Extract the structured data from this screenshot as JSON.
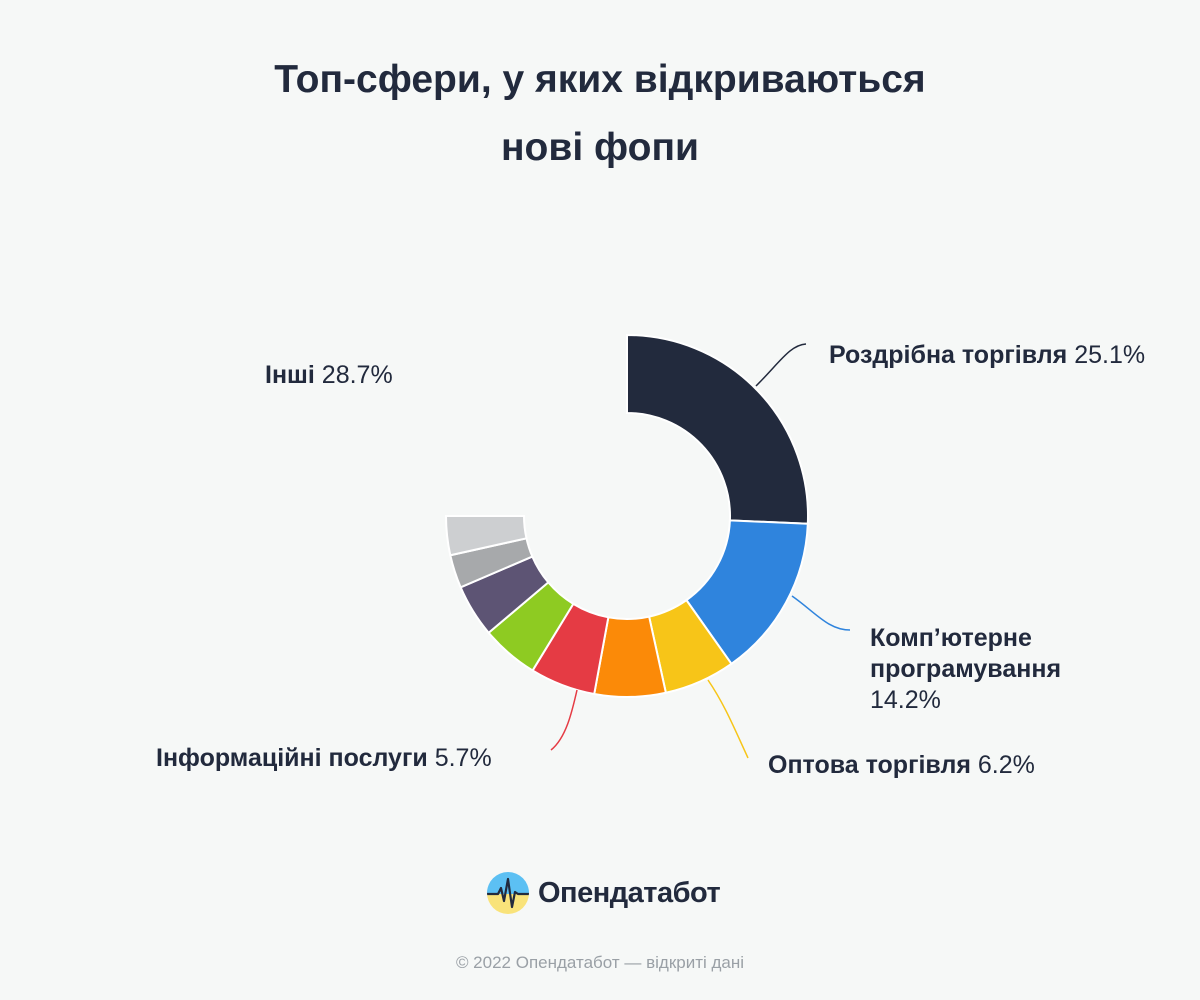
{
  "title": {
    "line1": "Топ-сфери, у яких відкриваються",
    "line2": "нові фопи"
  },
  "chart_data": {
    "type": "pie",
    "title": "Топ-сфери, у яких відкриваються нові фопи",
    "slices": [
      {
        "name": "Роздрібна торгівля",
        "value": 25.1,
        "pct_label": "25.1%",
        "color": "#222a3d"
      },
      {
        "name": "Комп’ютерне програмування",
        "value": 14.2,
        "pct_label": "14.2%",
        "color": "#2f84dd"
      },
      {
        "name": "Оптова торгівля",
        "value": 6.2,
        "pct_label": "6.2%",
        "color": "#f7c518"
      },
      {
        "name": "",
        "value": 6.2,
        "color": "#fb8a08"
      },
      {
        "name": "Інформаційні послуги",
        "value": 5.7,
        "pct_label": "5.7%",
        "color": "#e53b44"
      },
      {
        "name": "",
        "value": 5.0,
        "color": "#8ecb22"
      },
      {
        "name": "",
        "value": 4.6,
        "color": "#5d5474"
      },
      {
        "name": "",
        "value": 2.9,
        "color": "#a7a9ab"
      },
      {
        "name": "Інші",
        "value": 3.4,
        "pct_label": "28.7%",
        "color": "#cdcfd1"
      }
    ],
    "note": "Ring covers 75% of the circle; the missing quarter represents part of 'Інші'."
  },
  "labels": {
    "retail": {
      "name": "Роздрібна торгівля",
      "pct": "25.1%"
    },
    "software": {
      "name_line1": "Комп’ютерне",
      "name_line2": "програмування",
      "pct": "14.2%"
    },
    "wholesale": {
      "name": "Оптова торгівля",
      "pct": "6.2%"
    },
    "info": {
      "name": "Інформаційні послуги",
      "pct": "5.7%"
    },
    "others": {
      "name": "Інші",
      "pct": "28.7%"
    }
  },
  "brand": {
    "logo_text": "Опендатабот",
    "logo_colors": {
      "blue": "#5cc0f3",
      "yellow": "#f9e37a"
    }
  },
  "footer": "© 2022 Опендатабот — відкриті дані",
  "colors": {
    "background": "#f6f8f7",
    "text": "#222a3d",
    "footer": "#9aa0a6"
  }
}
